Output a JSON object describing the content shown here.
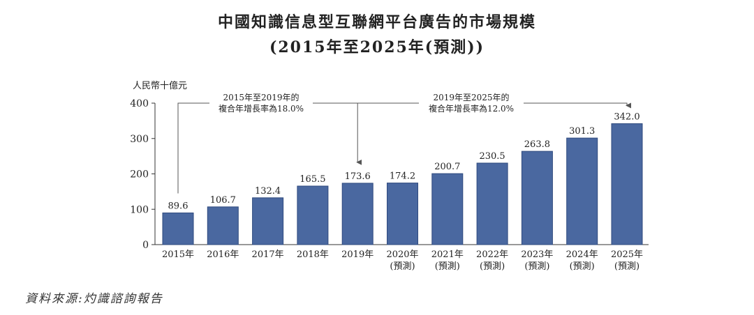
{
  "title_line1": "中國知識信息型互聯網平台廣告的市場規模",
  "title_line2": "(2015年至2025年(預測))",
  "source": "資料來源:灼識諮詢報告",
  "colors": {
    "bar": "#4a68a0",
    "bar_edge": "#2f4a7e",
    "axis": "#333333",
    "arrow": "#555555"
  },
  "chart_data": {
    "type": "bar",
    "title": "中國知識信息型互聯網平台廣告的市場規模 (2015年至2025年(預測))",
    "unit_label": "人民幣十億元",
    "categories": [
      {
        "year": "2015年",
        "note": ""
      },
      {
        "year": "2016年",
        "note": ""
      },
      {
        "year": "2017年",
        "note": ""
      },
      {
        "year": "2018年",
        "note": ""
      },
      {
        "year": "2019年",
        "note": ""
      },
      {
        "year": "2020年",
        "note": "(預測)"
      },
      {
        "year": "2021年",
        "note": "(預測)"
      },
      {
        "year": "2022年",
        "note": "(預測)"
      },
      {
        "year": "2023年",
        "note": "(預測)"
      },
      {
        "year": "2024年",
        "note": "(預測)"
      },
      {
        "year": "2025年",
        "note": "(預測)"
      }
    ],
    "values": [
      89.6,
      106.7,
      132.4,
      165.5,
      173.6,
      174.2,
      200.7,
      230.5,
      263.8,
      301.3,
      342.0
    ],
    "value_labels": [
      "89.6",
      "106.7",
      "132.4",
      "165.5",
      "173.6",
      "174.2",
      "200.7",
      "230.5",
      "263.8",
      "301.3",
      "342.0"
    ],
    "ylim": [
      0,
      400
    ],
    "yticks": [
      0,
      100,
      200,
      300,
      400
    ],
    "grid": false,
    "annotations": [
      {
        "line1": "2015年至2019年的",
        "line2": "複合年增長率為18.0%",
        "from_index": 0,
        "to_index": 4
      },
      {
        "line1": "2019年至2025年的",
        "line2": "複合年增長率為12.0%",
        "from_index": 4,
        "to_index": 10
      }
    ]
  }
}
